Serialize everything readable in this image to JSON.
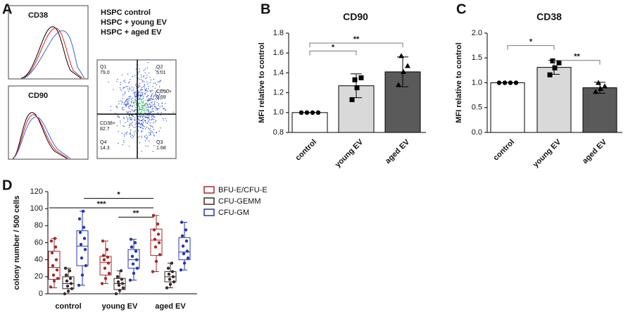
{
  "panel_a": {
    "panel": "A",
    "histograms": [
      {
        "title": "CD38"
      },
      {
        "title": "CD90"
      }
    ],
    "legend": [
      {
        "name": "HSPC control",
        "color": "#000000"
      },
      {
        "name": "HSPC + young EV",
        "color": "#e02020"
      },
      {
        "name": "HSPC + aged EV",
        "color": "#3a66c8"
      }
    ],
    "quadrants": [
      {
        "name": "Q1",
        "value": "79.0"
      },
      {
        "name": "Q2",
        "value": "5.01"
      },
      {
        "name": "CD90+",
        "value": "6.69"
      },
      {
        "name": "CD38+",
        "value": "82.7"
      },
      {
        "name": "Q4",
        "value": "14.3"
      },
      {
        "name": "Q3",
        "value": "1.68"
      }
    ]
  },
  "chart_data": [
    {
      "type": "bar",
      "panel": "B",
      "title": "CD90",
      "y_label": "MFI relative to control",
      "categories": [
        "control",
        "young EV",
        "aged EV"
      ],
      "values": [
        1.0,
        1.27,
        1.41
      ],
      "errors": [
        0.0,
        0.12,
        0.15
      ],
      "colors": [
        "#ffffff",
        "#d9d9d9",
        "#5a5a5a"
      ],
      "points": [
        [
          1.0,
          1.0,
          1.0,
          1.0
        ],
        [
          1.33,
          1.35,
          1.25,
          1.13
        ],
        [
          1.57,
          1.47,
          1.41,
          1.28
        ]
      ],
      "ylim": [
        0.8,
        1.8
      ],
      "yticks": [
        0.8,
        {
          "value": 1.0,
          "label": "1.0"
        },
        1.2,
        1.4,
        1.6,
        1.8
      ],
      "annotations": [
        {
          "text": "*"
        },
        {
          "text": "**"
        }
      ]
    },
    {
      "type": "bar",
      "panel": "C",
      "title": "CD38",
      "y_label": "MFI relative to control",
      "categories": [
        "control",
        "young EV",
        "aged EV"
      ],
      "values": [
        1.0,
        1.31,
        0.9
      ],
      "errors": [
        0.0,
        0.14,
        0.11
      ],
      "colors": [
        "#ffffff",
        "#d9d9d9",
        "#5a5a5a"
      ],
      "points": [
        [
          1.0,
          1.0,
          1.0,
          1.0
        ],
        [
          1.44,
          1.4,
          1.3,
          1.16
        ],
        [
          1.0,
          0.93,
          0.88,
          0.82
        ]
      ],
      "ylim": [
        0,
        2.0
      ],
      "yticks": [
        {
          "value": 0,
          "label": "0.0"
        },
        0.5,
        {
          "value": 1.0,
          "label": "1.0"
        },
        1.5,
        {
          "value": 2.0,
          "label": "2.0"
        }
      ],
      "annotations": [
        {
          "text": "*"
        },
        {
          "text": "**"
        }
      ]
    },
    {
      "type": "box",
      "panel": "D",
      "y_label": "colony number / 500 cells",
      "categories": [
        "control",
        "young EV",
        "aged EV"
      ],
      "ylim": [
        0,
        120
      ],
      "yticks": [
        0,
        20,
        40,
        60,
        80,
        100,
        120
      ],
      "series": [
        {
          "name": "BFU-E/CFU-E",
          "color": "#a52a2a",
          "values": [
            {
              "min": 7,
              "q1": 17,
              "median": 31,
              "q3": 50,
              "max": 65,
              "points": [
                8,
                15,
                18,
                22,
                28,
                33,
                40,
                48,
                55,
                62,
                65
              ]
            },
            {
              "min": 12,
              "q1": 22,
              "median": 37,
              "q3": 44,
              "max": 62,
              "points": [
                12,
                18,
                24,
                30,
                36,
                40,
                43,
                45,
                52,
                62
              ]
            },
            {
              "min": 26,
              "q1": 45,
              "median": 63,
              "q3": 76,
              "max": 92,
              "points": [
                26,
                38,
                46,
                55,
                60,
                64,
                70,
                75,
                82,
                92
              ]
            }
          ]
        },
        {
          "name": "CFU-GEMM",
          "color": "#3a2a2a",
          "values": [
            {
              "min": 0,
              "q1": 6,
              "median": 12,
              "q3": 20,
              "max": 30,
              "points": [
                0,
                3,
                6,
                9,
                12,
                15,
                18,
                22,
                27,
                30
              ]
            },
            {
              "min": 0,
              "q1": 5,
              "median": 12,
              "q3": 18,
              "max": 27,
              "points": [
                0,
                4,
                7,
                10,
                12,
                14,
                17,
                20,
                27
              ]
            },
            {
              "min": 7,
              "q1": 14,
              "median": 20,
              "q3": 26,
              "max": 36,
              "points": [
                7,
                11,
                14,
                17,
                20,
                23,
                26,
                30,
                36
              ]
            }
          ]
        },
        {
          "name": "CFU-GM",
          "color": "#2436b0",
          "values": [
            {
              "min": 10,
              "q1": 33,
              "median": 56,
              "q3": 74,
              "max": 97,
              "points": [
                10,
                22,
                33,
                42,
                52,
                58,
                65,
                72,
                78,
                88,
                97
              ]
            },
            {
              "min": 16,
              "q1": 30,
              "median": 40,
              "q3": 52,
              "max": 64,
              "points": [
                16,
                24,
                30,
                35,
                40,
                44,
                50,
                55,
                60,
                64
              ]
            },
            {
              "min": 28,
              "q1": 40,
              "median": 49,
              "q3": 66,
              "max": 84,
              "points": [
                28,
                36,
                42,
                47,
                50,
                56,
                62,
                68,
                75,
                84
              ]
            }
          ]
        }
      ],
      "annotations": [
        {
          "text": "*"
        },
        {
          "text": "***"
        },
        {
          "text": "**"
        }
      ]
    }
  ]
}
